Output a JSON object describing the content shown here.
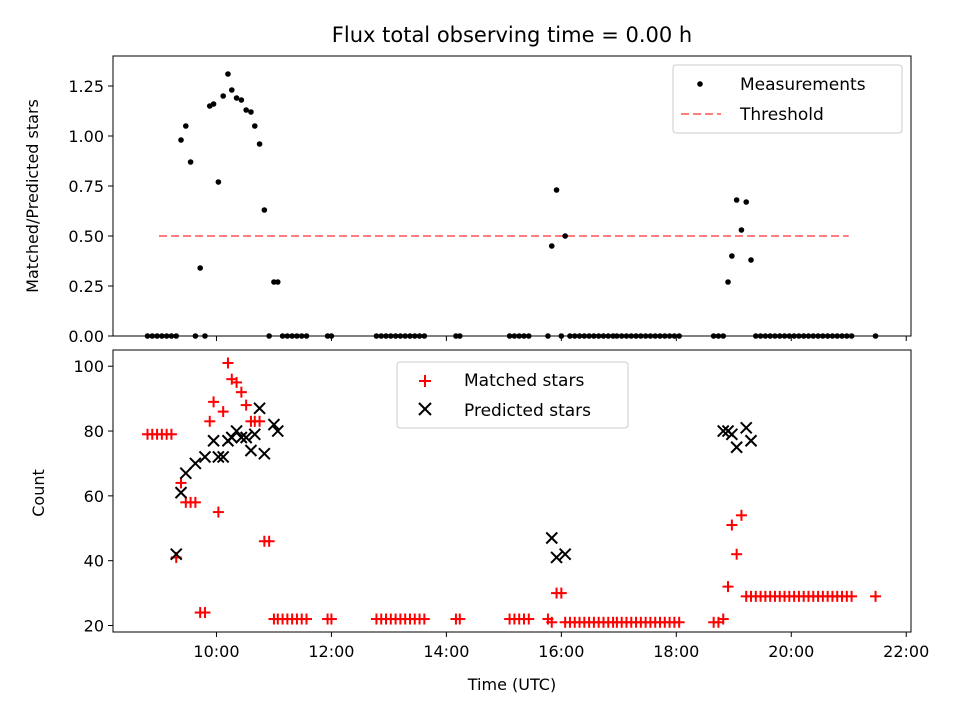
{
  "chart_data": [
    {
      "type": "scatter",
      "title": "Flux total observing time = 0.00 h",
      "xlabel": "",
      "ylabel": "Matched/Predicted stars",
      "ylim": [
        0,
        1.4
      ],
      "yticks": [
        0,
        0.25,
        0.5,
        0.75,
        1.0,
        1.25
      ],
      "ytick_labels": [
        "0.00",
        "0.25",
        "0.50",
        "0.75",
        "1.00",
        "1.25"
      ],
      "legend_placement": "top-right",
      "series": [
        {
          "name": "Measurements",
          "marker": "dot",
          "color": "#000000",
          "points": [
            [
              "08:48",
              0
            ],
            [
              "08:53",
              0
            ],
            [
              "08:58",
              0
            ],
            [
              "09:03",
              0
            ],
            [
              "09:08",
              0
            ],
            [
              "09:13",
              0
            ],
            [
              "09:18",
              0
            ],
            [
              "09:23",
              0.98
            ],
            [
              "09:28",
              1.05
            ],
            [
              "09:33",
              0.87
            ],
            [
              "09:38",
              0
            ],
            [
              "09:43",
              0.34
            ],
            [
              "09:48",
              0
            ],
            [
              "09:53",
              1.15
            ],
            [
              "09:57",
              1.16
            ],
            [
              "10:02",
              0.77
            ],
            [
              "10:07",
              1.2
            ],
            [
              "10:12",
              1.31
            ],
            [
              "10:16",
              1.23
            ],
            [
              "10:21",
              1.19
            ],
            [
              "10:26",
              1.18
            ],
            [
              "10:31",
              1.13
            ],
            [
              "10:36",
              1.12
            ],
            [
              "10:40",
              1.05
            ],
            [
              "10:45",
              0.96
            ],
            [
              "10:50",
              0.63
            ],
            [
              "10:55",
              0
            ],
            [
              "11:00",
              0.27
            ],
            [
              "11:04",
              0.27
            ],
            [
              "11:09",
              0
            ],
            [
              "11:14",
              0
            ],
            [
              "11:19",
              0
            ],
            [
              "11:24",
              0
            ],
            [
              "11:29",
              0
            ],
            [
              "11:34",
              0
            ],
            [
              "11:56",
              0
            ],
            [
              "12:00",
              0
            ],
            [
              "12:47",
              0
            ],
            [
              "12:52",
              0
            ],
            [
              "12:57",
              0
            ],
            [
              "13:02",
              0
            ],
            [
              "13:07",
              0
            ],
            [
              "13:12",
              0
            ],
            [
              "13:17",
              0
            ],
            [
              "13:22",
              0
            ],
            [
              "13:27",
              0
            ],
            [
              "13:32",
              0
            ],
            [
              "13:37",
              0
            ],
            [
              "14:10",
              0
            ],
            [
              "14:14",
              0
            ],
            [
              "15:06",
              0
            ],
            [
              "15:11",
              0
            ],
            [
              "15:16",
              0
            ],
            [
              "15:21",
              0
            ],
            [
              "15:26",
              0
            ],
            [
              "15:46",
              0
            ],
            [
              "15:50",
              0.45
            ],
            [
              "15:55",
              0.73
            ],
            [
              "16:00",
              0
            ],
            [
              "16:04",
              0.5
            ],
            [
              "16:09",
              0
            ],
            [
              "16:14",
              0
            ],
            [
              "16:19",
              0
            ],
            [
              "16:24",
              0
            ],
            [
              "16:29",
              0
            ],
            [
              "16:34",
              0
            ],
            [
              "16:39",
              0
            ],
            [
              "16:44",
              0
            ],
            [
              "16:49",
              0
            ],
            [
              "16:54",
              0
            ],
            [
              "16:58",
              0
            ],
            [
              "17:03",
              0
            ],
            [
              "17:08",
              0
            ],
            [
              "17:13",
              0
            ],
            [
              "17:18",
              0
            ],
            [
              "17:23",
              0
            ],
            [
              "17:28",
              0
            ],
            [
              "17:33",
              0
            ],
            [
              "17:38",
              0
            ],
            [
              "17:43",
              0
            ],
            [
              "17:48",
              0
            ],
            [
              "17:53",
              0
            ],
            [
              "17:58",
              0
            ],
            [
              "18:03",
              0
            ],
            [
              "18:39",
              0
            ],
            [
              "18:44",
              0
            ],
            [
              "18:49",
              0
            ],
            [
              "18:54",
              0.27
            ],
            [
              "18:58",
              0.4
            ],
            [
              "19:03",
              0.68
            ],
            [
              "19:08",
              0.53
            ],
            [
              "19:13",
              0.67
            ],
            [
              "19:18",
              0.38
            ],
            [
              "19:23",
              0
            ],
            [
              "19:28",
              0
            ],
            [
              "19:33",
              0
            ],
            [
              "19:38",
              0
            ],
            [
              "19:43",
              0
            ],
            [
              "19:48",
              0
            ],
            [
              "19:53",
              0
            ],
            [
              "19:58",
              0
            ],
            [
              "20:03",
              0
            ],
            [
              "20:08",
              0
            ],
            [
              "20:13",
              0
            ],
            [
              "20:18",
              0
            ],
            [
              "20:23",
              0
            ],
            [
              "20:28",
              0
            ],
            [
              "20:33",
              0
            ],
            [
              "20:38",
              0
            ],
            [
              "20:43",
              0
            ],
            [
              "20:48",
              0
            ],
            [
              "20:53",
              0
            ],
            [
              "20:58",
              0
            ],
            [
              "21:03",
              0
            ],
            [
              "21:28",
              0
            ]
          ]
        },
        {
          "name": "Threshold",
          "marker": "dashed-line",
          "color": "#ff7f7f",
          "points": [
            [
              "09:00",
              0.5
            ],
            [
              "21:00",
              0.5
            ]
          ]
        }
      ]
    },
    {
      "type": "scatter",
      "title": "",
      "xlabel": "Time (UTC)",
      "ylabel": "Count",
      "ylim": [
        18,
        105
      ],
      "yticks": [
        20,
        40,
        60,
        80,
        100
      ],
      "ytick_labels": [
        "20",
        "40",
        "60",
        "80",
        "100"
      ],
      "xlim": [
        "08:12",
        "22:05"
      ],
      "xticks": [
        "10:00",
        "12:00",
        "14:00",
        "16:00",
        "18:00",
        "20:00",
        "22:00"
      ],
      "legend_placement": "upper-center",
      "series": [
        {
          "name": "Matched stars",
          "marker": "plus",
          "color": "#ff0000",
          "points": [
            [
              "08:48",
              79
            ],
            [
              "08:53",
              79
            ],
            [
              "08:58",
              79
            ],
            [
              "09:03",
              79
            ],
            [
              "09:08",
              79
            ],
            [
              "09:13",
              79
            ],
            [
              "09:18",
              41
            ],
            [
              "09:23",
              64
            ],
            [
              "09:28",
              58
            ],
            [
              "09:33",
              58
            ],
            [
              "09:38",
              58
            ],
            [
              "09:43",
              24
            ],
            [
              "09:48",
              24
            ],
            [
              "09:53",
              83
            ],
            [
              "09:57",
              89
            ],
            [
              "10:02",
              55
            ],
            [
              "10:07",
              86
            ],
            [
              "10:12",
              101
            ],
            [
              "10:16",
              96
            ],
            [
              "10:21",
              95
            ],
            [
              "10:26",
              92
            ],
            [
              "10:31",
              88
            ],
            [
              "10:36",
              83
            ],
            [
              "10:40",
              83
            ],
            [
              "10:45",
              83
            ],
            [
              "10:50",
              46
            ],
            [
              "10:55",
              46
            ],
            [
              "11:00",
              22
            ],
            [
              "11:04",
              22
            ],
            [
              "11:09",
              22
            ],
            [
              "11:14",
              22
            ],
            [
              "11:19",
              22
            ],
            [
              "11:24",
              22
            ],
            [
              "11:29",
              22
            ],
            [
              "11:34",
              22
            ],
            [
              "11:56",
              22
            ],
            [
              "12:00",
              22
            ],
            [
              "12:47",
              22
            ],
            [
              "12:52",
              22
            ],
            [
              "12:57",
              22
            ],
            [
              "13:02",
              22
            ],
            [
              "13:07",
              22
            ],
            [
              "13:12",
              22
            ],
            [
              "13:17",
              22
            ],
            [
              "13:22",
              22
            ],
            [
              "13:27",
              22
            ],
            [
              "13:32",
              22
            ],
            [
              "13:37",
              22
            ],
            [
              "14:10",
              22
            ],
            [
              "14:14",
              22
            ],
            [
              "15:06",
              22
            ],
            [
              "15:11",
              22
            ],
            [
              "15:16",
              22
            ],
            [
              "15:21",
              22
            ],
            [
              "15:26",
              22
            ],
            [
              "15:46",
              22
            ],
            [
              "15:50",
              21
            ],
            [
              "15:55",
              30
            ],
            [
              "16:00",
              30
            ],
            [
              "16:04",
              21
            ],
            [
              "16:09",
              21
            ],
            [
              "16:14",
              21
            ],
            [
              "16:19",
              21
            ],
            [
              "16:24",
              21
            ],
            [
              "16:29",
              21
            ],
            [
              "16:34",
              21
            ],
            [
              "16:39",
              21
            ],
            [
              "16:44",
              21
            ],
            [
              "16:49",
              21
            ],
            [
              "16:54",
              21
            ],
            [
              "16:58",
              21
            ],
            [
              "17:03",
              21
            ],
            [
              "17:08",
              21
            ],
            [
              "17:13",
              21
            ],
            [
              "17:18",
              21
            ],
            [
              "17:23",
              21
            ],
            [
              "17:28",
              21
            ],
            [
              "17:33",
              21
            ],
            [
              "17:38",
              21
            ],
            [
              "17:43",
              21
            ],
            [
              "17:48",
              21
            ],
            [
              "17:53",
              21
            ],
            [
              "17:58",
              21
            ],
            [
              "18:03",
              21
            ],
            [
              "18:39",
              21
            ],
            [
              "18:44",
              21
            ],
            [
              "18:49",
              22
            ],
            [
              "18:54",
              32
            ],
            [
              "18:58",
              51
            ],
            [
              "19:03",
              42
            ],
            [
              "19:08",
              54
            ],
            [
              "19:13",
              29
            ],
            [
              "19:18",
              29
            ],
            [
              "19:23",
              29
            ],
            [
              "19:28",
              29
            ],
            [
              "19:33",
              29
            ],
            [
              "19:38",
              29
            ],
            [
              "19:43",
              29
            ],
            [
              "19:48",
              29
            ],
            [
              "19:53",
              29
            ],
            [
              "19:58",
              29
            ],
            [
              "20:03",
              29
            ],
            [
              "20:08",
              29
            ],
            [
              "20:13",
              29
            ],
            [
              "20:18",
              29
            ],
            [
              "20:23",
              29
            ],
            [
              "20:28",
              29
            ],
            [
              "20:33",
              29
            ],
            [
              "20:38",
              29
            ],
            [
              "20:43",
              29
            ],
            [
              "20:48",
              29
            ],
            [
              "20:53",
              29
            ],
            [
              "20:58",
              29
            ],
            [
              "21:03",
              29
            ],
            [
              "21:28",
              29
            ]
          ]
        },
        {
          "name": "Predicted stars",
          "marker": "x",
          "color": "#000000",
          "points": [
            [
              "09:18",
              42
            ],
            [
              "09:23",
              61
            ],
            [
              "09:28",
              67
            ],
            [
              "09:38",
              70
            ],
            [
              "09:48",
              72
            ],
            [
              "09:57",
              77
            ],
            [
              "10:02",
              72
            ],
            [
              "10:07",
              72
            ],
            [
              "10:12",
              77
            ],
            [
              "10:16",
              78
            ],
            [
              "10:21",
              80
            ],
            [
              "10:26",
              78
            ],
            [
              "10:31",
              78
            ],
            [
              "10:36",
              74
            ],
            [
              "10:40",
              79
            ],
            [
              "10:45",
              87
            ],
            [
              "10:50",
              73
            ],
            [
              "11:00",
              82
            ],
            [
              "11:04",
              80
            ],
            [
              "15:50",
              47
            ],
            [
              "15:55",
              41
            ],
            [
              "16:04",
              42
            ],
            [
              "18:49",
              80
            ],
            [
              "18:54",
              80
            ],
            [
              "18:58",
              79
            ],
            [
              "19:03",
              75
            ],
            [
              "19:13",
              81
            ],
            [
              "19:18",
              77
            ]
          ]
        }
      ]
    }
  ]
}
